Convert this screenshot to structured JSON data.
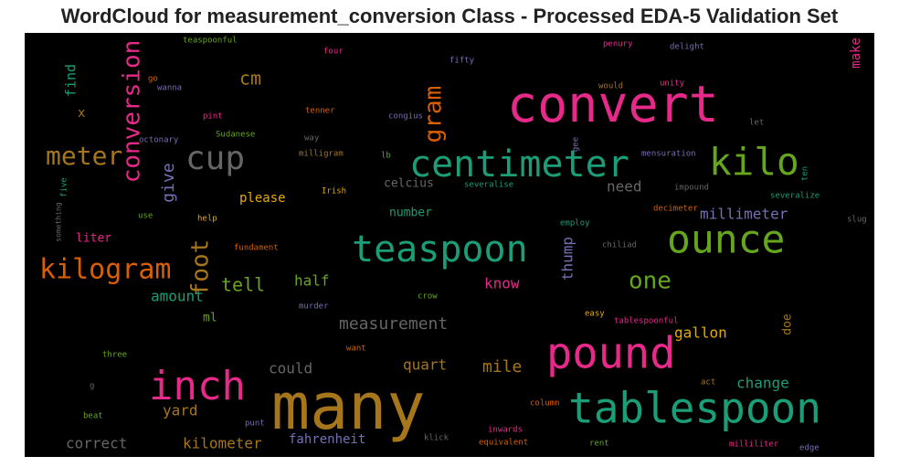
{
  "chart_data": {
    "type": "wordcloud",
    "title": "WordCloud for measurement_conversion Class - Processed EDA-5 Validation Set",
    "background": "#000000",
    "words": [
      {
        "text": "convert",
        "color": "#e7298a"
      },
      {
        "text": "many",
        "color": "#a6761d"
      },
      {
        "text": "tablespoon",
        "color": "#1b9e77"
      },
      {
        "text": "pound",
        "color": "#e7298a"
      },
      {
        "text": "inch",
        "color": "#e7298a"
      },
      {
        "text": "teaspoon",
        "color": "#1b9e77"
      },
      {
        "text": "ounce",
        "color": "#66a61e"
      },
      {
        "text": "centimeter",
        "color": "#1b9e77"
      },
      {
        "text": "kilo",
        "color": "#66a61e"
      },
      {
        "text": "cup",
        "color": "#666666"
      },
      {
        "text": "kilogram",
        "color": "#d95f02"
      },
      {
        "text": "meter",
        "color": "#a6761d"
      },
      {
        "text": "conversion",
        "color": "#e7298a"
      },
      {
        "text": "gram",
        "color": "#d95f02"
      },
      {
        "text": "foot",
        "color": "#a6761d"
      },
      {
        "text": "give",
        "color": "#7570b3"
      },
      {
        "text": "find",
        "color": "#1b9e77"
      },
      {
        "text": "make",
        "color": "#e7298a"
      },
      {
        "text": "thump",
        "color": "#7570b3"
      },
      {
        "text": "doe",
        "color": "#a6761d"
      },
      {
        "text": "cm",
        "color": "#a6761d"
      },
      {
        "text": "x",
        "color": "#a6761d"
      },
      {
        "text": "please",
        "color": "#e6ab02"
      },
      {
        "text": "tell",
        "color": "#66a61e"
      },
      {
        "text": "amount",
        "color": "#1b9e77"
      },
      {
        "text": "half",
        "color": "#66a61e"
      },
      {
        "text": "one",
        "color": "#66a61e"
      },
      {
        "text": "know",
        "color": "#e7298a"
      },
      {
        "text": "need",
        "color": "#666666"
      },
      {
        "text": "millimeter",
        "color": "#7570b3"
      },
      {
        "text": "celcius",
        "color": "#666666"
      },
      {
        "text": "number",
        "color": "#1b9e77"
      },
      {
        "text": "measurement",
        "color": "#666666"
      },
      {
        "text": "liter",
        "color": "#e7298a"
      },
      {
        "text": "ml",
        "color": "#66a61e"
      },
      {
        "text": "gallon",
        "color": "#e6ab02"
      },
      {
        "text": "could",
        "color": "#666666"
      },
      {
        "text": "quart",
        "color": "#a6761d"
      },
      {
        "text": "mile",
        "color": "#a6761d"
      },
      {
        "text": "change",
        "color": "#1b9e77"
      },
      {
        "text": "yard",
        "color": "#a6761d"
      },
      {
        "text": "correct",
        "color": "#666666"
      },
      {
        "text": "kilometer",
        "color": "#a6761d"
      },
      {
        "text": "fahrenheit",
        "color": "#7570b3"
      },
      {
        "text": "teaspoonful",
        "color": "#66a61e"
      },
      {
        "text": "four",
        "color": "#e7298a"
      },
      {
        "text": "penury",
        "color": "#e7298a"
      },
      {
        "text": "delight",
        "color": "#7570b3"
      },
      {
        "text": "fifty",
        "color": "#7570b3"
      },
      {
        "text": "go",
        "color": "#d95f02"
      },
      {
        "text": "wanna",
        "color": "#7570b3"
      },
      {
        "text": "would",
        "color": "#a6761d"
      },
      {
        "text": "unity",
        "color": "#e7298a"
      },
      {
        "text": "tenner",
        "color": "#d95f02"
      },
      {
        "text": "congius",
        "color": "#7570b3"
      },
      {
        "text": "pint",
        "color": "#e7298a"
      },
      {
        "text": "let",
        "color": "#666666"
      },
      {
        "text": "octonary",
        "color": "#7570b3"
      },
      {
        "text": "Sudanese",
        "color": "#66a61e"
      },
      {
        "text": "way",
        "color": "#666666"
      },
      {
        "text": "gee",
        "color": "#7570b3"
      },
      {
        "text": "ten",
        "color": "#1b9e77"
      },
      {
        "text": "mensuration",
        "color": "#7570b3"
      },
      {
        "text": "milligram",
        "color": "#a6761d"
      },
      {
        "text": "lb",
        "color": "#66a61e"
      },
      {
        "text": "Irish",
        "color": "#e6ab02"
      },
      {
        "text": "severalise",
        "color": "#1b9e77"
      },
      {
        "text": "impound",
        "color": "#666666"
      },
      {
        "text": "severalize",
        "color": "#1b9e77"
      },
      {
        "text": "five",
        "color": "#1b9e77"
      },
      {
        "text": "use",
        "color": "#66a61e"
      },
      {
        "text": "help",
        "color": "#e6ab02"
      },
      {
        "text": "decimeter",
        "color": "#d95f02"
      },
      {
        "text": "employ",
        "color": "#1b9e77"
      },
      {
        "text": "slug",
        "color": "#666666"
      },
      {
        "text": "something",
        "color": "#666666"
      },
      {
        "text": "fundament",
        "color": "#d95f02"
      },
      {
        "text": "chiliad",
        "color": "#666666"
      },
      {
        "text": "crow",
        "color": "#66a61e"
      },
      {
        "text": "murder",
        "color": "#7570b3"
      },
      {
        "text": "easy",
        "color": "#e6ab02"
      },
      {
        "text": "tablespoonful",
        "color": "#e7298a"
      },
      {
        "text": "want",
        "color": "#d95f02"
      },
      {
        "text": "three",
        "color": "#66a61e"
      },
      {
        "text": "act",
        "color": "#a6761d"
      },
      {
        "text": "g",
        "color": "#666666"
      },
      {
        "text": "column",
        "color": "#d95f02"
      },
      {
        "text": "beat",
        "color": "#66a61e"
      },
      {
        "text": "punt",
        "color": "#7570b3"
      },
      {
        "text": "inwards",
        "color": "#e7298a"
      },
      {
        "text": "klick",
        "color": "#666666"
      },
      {
        "text": "equivalent",
        "color": "#d95f02"
      },
      {
        "text": "rent",
        "color": "#66a61e"
      },
      {
        "text": "milliliter",
        "color": "#e7298a"
      },
      {
        "text": "edge",
        "color": "#7570b3"
      }
    ]
  }
}
